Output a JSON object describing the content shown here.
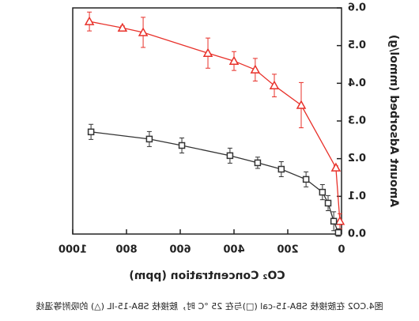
{
  "chart_data": {
    "type": "line",
    "x_label": "CO₂ Concentration (ppm)",
    "y_label": "Amount Adsorbed (mmol/g)",
    "caption": "图4.CO2 在胺接枝 SBA-15-cal (□)与在 25 °C 时，胺接枝 SBA-15-IL (△) 的吸附等温线",
    "xlim": [
      0,
      1000
    ],
    "xticks": [
      0,
      200,
      400,
      600,
      800,
      1000
    ],
    "ylim": [
      0,
      0.6
    ],
    "yticks": [
      {
        "value": 0,
        "label": "0.0"
      },
      0.1,
      0.2,
      0.3,
      0.4,
      0.5,
      0.6
    ],
    "series": [
      {
        "color": "#e8312a",
        "marker": "triangle",
        "x": [
          938,
          815,
          738,
          497,
          400,
          321,
          250,
          150,
          21,
          6
        ],
        "values": [
          0.564,
          0.547,
          0.535,
          0.48,
          0.459,
          0.436,
          0.394,
          0.342,
          0.176,
          0.034
        ],
        "errors": [
          0.025,
          0.005,
          0.04,
          0.04,
          0.025,
          0.03,
          0.03,
          0.06,
          0.005,
          0.02
        ]
      },
      {
        "color": "#333333",
        "marker": "square",
        "x": [
          932,
          715,
          594,
          415,
          312,
          224,
          132,
          71,
          50,
          29,
          12
        ],
        "values": [
          0.271,
          0.252,
          0.235,
          0.208,
          0.189,
          0.172,
          0.145,
          0.111,
          0.082,
          0.034,
          0.004
        ],
        "errors": [
          0.02,
          0.02,
          0.02,
          0.02,
          0.015,
          0.02,
          0.02,
          0.02,
          0.02,
          0.025,
          0.01
        ]
      }
    ]
  }
}
